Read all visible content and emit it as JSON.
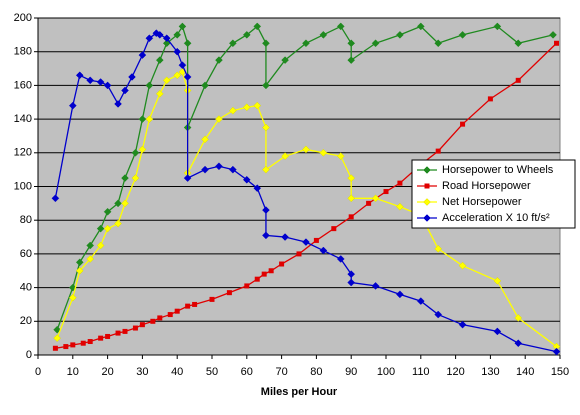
{
  "chart_data": {
    "type": "line",
    "xlabel": "Miles per Hour",
    "xlim": [
      0,
      150
    ],
    "xticks": [
      0,
      10,
      20,
      30,
      40,
      50,
      60,
      70,
      80,
      90,
      100,
      110,
      120,
      130,
      140,
      150
    ],
    "ylim": [
      0,
      200
    ],
    "yticks": [
      0,
      20,
      40,
      60,
      80,
      100,
      120,
      140,
      160,
      180,
      200
    ],
    "grid": true,
    "legend": "right",
    "series": [
      {
        "name": "Horsepower to Wheels",
        "color": "#1f8a1f",
        "marker": "diamond",
        "x": [
          5.5,
          10,
          12,
          15,
          18,
          20,
          23,
          25,
          28,
          30,
          32,
          35,
          37,
          40,
          41.5,
          43,
          43,
          48,
          52,
          56,
          60,
          63,
          65.5,
          65.5,
          71,
          77,
          82,
          87,
          90,
          90,
          97,
          104,
          110,
          115,
          122,
          132,
          138,
          148
        ],
        "values": [
          15,
          40,
          55,
          65,
          75,
          85,
          90,
          105,
          120,
          140,
          160,
          175,
          185,
          190,
          195,
          185,
          135,
          160,
          175,
          185,
          190,
          195,
          185,
          160,
          175,
          185,
          190,
          195,
          185,
          175,
          185,
          190,
          195,
          185,
          190,
          195,
          185,
          190
        ]
      },
      {
        "name": "Road Horsepower",
        "color": "#e00000",
        "marker": "square",
        "x": [
          5,
          8,
          10,
          13,
          15,
          18,
          20,
          23,
          25,
          28,
          30,
          33,
          35,
          38,
          40,
          43,
          45,
          50,
          55,
          60,
          63,
          65,
          67,
          70,
          75,
          80,
          85,
          90,
          95,
          100,
          104,
          110,
          115,
          122,
          130,
          138,
          149
        ],
        "values": [
          4,
          5,
          6,
          7,
          8,
          10,
          11,
          13,
          14,
          16,
          18,
          20,
          22,
          24,
          26,
          29,
          30,
          33,
          37,
          41,
          45,
          48,
          50,
          54,
          60,
          68,
          75,
          82,
          90,
          97,
          102,
          113,
          121,
          137,
          152,
          163,
          185
        ]
      },
      {
        "name": "Net Horsepower",
        "color": "#ffff00",
        "marker": "diamond",
        "x": [
          5.5,
          10,
          12,
          15,
          18,
          20,
          23,
          25,
          28,
          30,
          32,
          35,
          37,
          40,
          41.5,
          43,
          43,
          48,
          52,
          56,
          60,
          63,
          65.5,
          65.5,
          71,
          77,
          82,
          87,
          90,
          90,
          97,
          104,
          110,
          115,
          122,
          132,
          138,
          149
        ],
        "values": [
          10,
          34,
          50,
          57,
          65,
          75,
          78,
          90,
          105,
          122,
          140,
          155,
          163,
          166,
          168,
          157,
          108,
          128,
          140,
          145,
          147,
          148,
          135,
          110,
          118,
          122,
          120,
          118,
          105,
          93,
          93,
          88,
          83,
          63,
          53,
          44,
          22,
          5
        ]
      },
      {
        "name": "Acceleration X 10 ft/s²",
        "color": "#0000cc",
        "marker": "diamond",
        "x": [
          5,
          10,
          12,
          15,
          18,
          20,
          23,
          25,
          27,
          30,
          32,
          34,
          35,
          37,
          40,
          41.5,
          43,
          43,
          48,
          52,
          56,
          60,
          63,
          65.5,
          65.5,
          71,
          77,
          82,
          87,
          90,
          90,
          97,
          104,
          110,
          115,
          122,
          132,
          138,
          149
        ],
        "values": [
          93,
          148,
          166,
          163,
          162,
          160,
          149,
          157,
          165,
          178,
          188,
          191,
          190,
          188,
          180,
          172,
          165,
          105,
          110,
          112,
          110,
          104,
          99,
          86,
          71,
          70,
          67,
          62,
          57,
          48,
          43,
          41,
          36,
          32,
          24,
          18,
          14,
          7,
          2
        ]
      }
    ]
  }
}
